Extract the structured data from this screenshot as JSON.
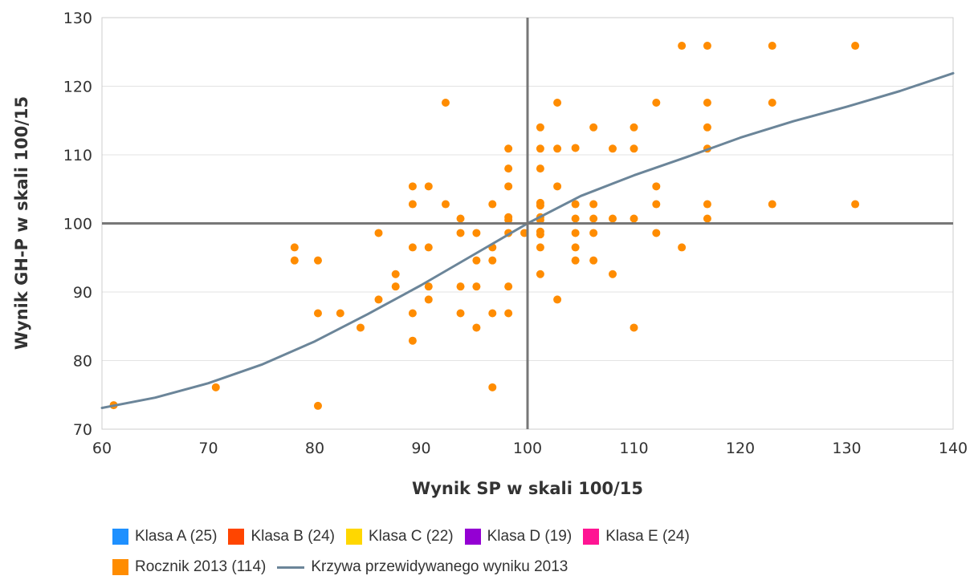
{
  "chart_data": {
    "type": "scatter",
    "xlabel": "Wynik SP w skali 100/15",
    "ylabel": "Wynik GH-P w skali 100/15",
    "xlim": [
      60,
      140
    ],
    "ylim": [
      70,
      130
    ],
    "xticks": [
      60,
      70,
      80,
      90,
      100,
      110,
      120,
      130,
      140
    ],
    "yticks": [
      70,
      80,
      90,
      100,
      110,
      120,
      130
    ],
    "grid": "horizontal",
    "reference_lines": {
      "x": 100,
      "y": 100
    },
    "legend_position": "bottom",
    "legend": [
      {
        "label": "Klasa A (25)",
        "color": "#1e90ff",
        "kind": "swatch"
      },
      {
        "label": "Klasa B (24)",
        "color": "#ff4500",
        "kind": "swatch"
      },
      {
        "label": "Klasa C (22)",
        "color": "#ffd700",
        "kind": "swatch"
      },
      {
        "label": "Klasa D (19)",
        "color": "#9400d3",
        "kind": "swatch"
      },
      {
        "label": "Klasa E (24)",
        "color": "#ff1493",
        "kind": "swatch"
      },
      {
        "label": "Rocznik 2013 (114)",
        "color": "#ff8c00",
        "kind": "swatch"
      },
      {
        "label": "Krzywa przewidywanego wyniku 2013",
        "color": "#6b8599",
        "kind": "line"
      }
    ],
    "series": [
      {
        "name": "Rocznik 2013 (114)",
        "color": "#ff8c00",
        "points": [
          [
            61.1,
            73.5
          ],
          [
            70.7,
            76.1
          ],
          [
            78.1,
            96.5
          ],
          [
            78.1,
            94.6
          ],
          [
            80.3,
            94.6
          ],
          [
            80.3,
            86.9
          ],
          [
            80.3,
            73.4
          ],
          [
            82.4,
            86.9
          ],
          [
            84.3,
            84.8
          ],
          [
            86.0,
            98.6
          ],
          [
            86.0,
            88.9
          ],
          [
            87.6,
            92.6
          ],
          [
            87.6,
            90.8
          ],
          [
            89.2,
            105.4
          ],
          [
            89.2,
            102.8
          ],
          [
            89.2,
            96.5
          ],
          [
            89.2,
            86.9
          ],
          [
            89.2,
            82.9
          ],
          [
            90.7,
            105.4
          ],
          [
            90.7,
            96.5
          ],
          [
            90.7,
            90.8
          ],
          [
            90.7,
            88.9
          ],
          [
            92.3,
            117.6
          ],
          [
            92.3,
            102.8
          ],
          [
            93.7,
            100.7
          ],
          [
            93.7,
            98.6
          ],
          [
            93.7,
            90.8
          ],
          [
            93.7,
            86.9
          ],
          [
            95.2,
            98.6
          ],
          [
            95.2,
            94.6
          ],
          [
            95.2,
            90.8
          ],
          [
            95.2,
            84.8
          ],
          [
            96.7,
            102.8
          ],
          [
            96.7,
            96.5
          ],
          [
            96.7,
            94.6
          ],
          [
            96.7,
            86.9
          ],
          [
            96.7,
            76.1
          ],
          [
            98.2,
            110.9
          ],
          [
            98.2,
            108.0
          ],
          [
            98.2,
            105.4
          ],
          [
            98.2,
            100.9
          ],
          [
            98.2,
            100.5
          ],
          [
            98.2,
            98.6
          ],
          [
            98.2,
            90.8
          ],
          [
            98.2,
            86.9
          ],
          [
            99.7,
            98.6
          ],
          [
            101.2,
            114.0
          ],
          [
            101.2,
            110.9
          ],
          [
            101.2,
            108.0
          ],
          [
            101.2,
            103.0
          ],
          [
            101.2,
            102.6
          ],
          [
            101.2,
            100.9
          ],
          [
            101.2,
            100.5
          ],
          [
            101.2,
            98.8
          ],
          [
            101.2,
            98.4
          ],
          [
            101.2,
            96.5
          ],
          [
            101.2,
            92.6
          ],
          [
            102.8,
            117.6
          ],
          [
            102.8,
            110.9
          ],
          [
            102.8,
            105.4
          ],
          [
            102.8,
            88.9
          ],
          [
            104.5,
            111.0
          ],
          [
            104.5,
            102.8
          ],
          [
            104.5,
            100.7
          ],
          [
            104.5,
            98.6
          ],
          [
            104.5,
            96.5
          ],
          [
            104.5,
            94.6
          ],
          [
            106.2,
            114.0
          ],
          [
            106.2,
            102.8
          ],
          [
            106.2,
            100.7
          ],
          [
            106.2,
            98.6
          ],
          [
            106.2,
            94.6
          ],
          [
            108.0,
            110.9
          ],
          [
            108.0,
            100.7
          ],
          [
            108.0,
            92.6
          ],
          [
            110.0,
            114.0
          ],
          [
            110.0,
            110.9
          ],
          [
            110.0,
            100.7
          ],
          [
            110.0,
            84.8
          ],
          [
            112.1,
            117.6
          ],
          [
            112.1,
            105.4
          ],
          [
            112.1,
            102.8
          ],
          [
            112.1,
            98.6
          ],
          [
            114.5,
            125.9
          ],
          [
            114.5,
            96.5
          ],
          [
            116.9,
            125.9
          ],
          [
            116.9,
            117.6
          ],
          [
            116.9,
            114.0
          ],
          [
            116.9,
            110.9
          ],
          [
            116.9,
            102.8
          ],
          [
            116.9,
            100.7
          ],
          [
            123.0,
            125.9
          ],
          [
            123.0,
            117.6
          ],
          [
            123.0,
            102.8
          ],
          [
            130.8,
            125.9
          ],
          [
            130.8,
            102.8
          ]
        ]
      },
      {
        "name": "Krzywa przewidywanego wyniku 2013",
        "color": "#6b8599",
        "type": "line",
        "points": [
          [
            60,
            73.1
          ],
          [
            65,
            74.6
          ],
          [
            70,
            76.7
          ],
          [
            75,
            79.4
          ],
          [
            80,
            82.8
          ],
          [
            85,
            86.8
          ],
          [
            90,
            91.0
          ],
          [
            95,
            95.5
          ],
          [
            100,
            100.0
          ],
          [
            105,
            104.0
          ],
          [
            110,
            107.0
          ],
          [
            115,
            109.7
          ],
          [
            120,
            112.5
          ],
          [
            125,
            114.9
          ],
          [
            130,
            117.0
          ],
          [
            135,
            119.3
          ],
          [
            140,
            121.9
          ]
        ]
      }
    ]
  }
}
